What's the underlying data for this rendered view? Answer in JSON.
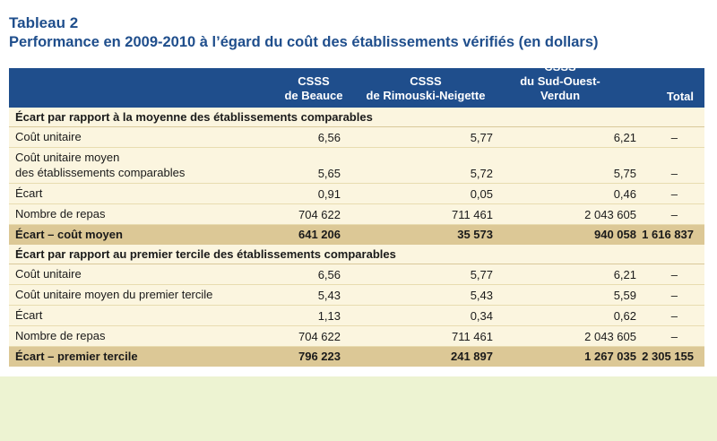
{
  "title": {
    "label": "Tableau 2",
    "subtitle": "Performance en 2009-2010 à l’égard du coût des établissements vérifiés (en dollars)"
  },
  "columns": [
    {
      "line1": "CSSS",
      "line2": "de Beauce"
    },
    {
      "line1": "CSSS",
      "line2": "de Rimouski-Neigette"
    },
    {
      "line1": "CSSS",
      "line2": "du Sud-Ouest-Verdun"
    },
    {
      "line1": "",
      "line2": "Total"
    }
  ],
  "section1": {
    "heading": "Écart par rapport à la moyenne des établissements comparables",
    "rows": [
      {
        "label": "Coût unitaire",
        "label2": "",
        "values": [
          "6,56",
          "5,77",
          "6,21",
          "–"
        ]
      },
      {
        "label": "Coût unitaire moyen",
        "label2": "des établissements comparables",
        "values": [
          "5,65",
          "5,72",
          "5,75",
          "–"
        ]
      },
      {
        "label": "Écart",
        "label2": "",
        "values": [
          "0,91",
          "0,05",
          "0,46",
          "–"
        ]
      },
      {
        "label": "Nombre de repas",
        "label2": "",
        "values": [
          "704 622",
          "711 461",
          "2 043 605",
          "–"
        ]
      }
    ],
    "total": {
      "label": "Écart – coût moyen",
      "values": [
        "641 206",
        "35 573",
        "940 058",
        "1 616 837"
      ]
    }
  },
  "section2": {
    "heading": "Écart par rapport au premier tercile des établissements comparables",
    "rows": [
      {
        "label": "Coût unitaire",
        "values": [
          "6,56",
          "5,77",
          "6,21",
          "–"
        ]
      },
      {
        "label": "Coût unitaire moyen du premier tercile",
        "values": [
          "5,43",
          "5,43",
          "5,59",
          "–"
        ]
      },
      {
        "label": "Écart",
        "values": [
          "1,13",
          "0,34",
          "0,62",
          "–"
        ]
      },
      {
        "label": "Nombre de repas",
        "values": [
          "704 622",
          "711 461",
          "2 043 605",
          "–"
        ]
      }
    ],
    "total": {
      "label": "Écart – premier tercile",
      "values": [
        "796 223",
        "241 897",
        "1 267 035",
        "2 305 155"
      ]
    }
  },
  "colors": {
    "header_bg": "#1f4e8c",
    "title_text": "#1f4e8c",
    "table_bg": "#fbf5df",
    "total_row_bg": "#dcc896",
    "page_bottom_bg": "#edf3d2"
  }
}
